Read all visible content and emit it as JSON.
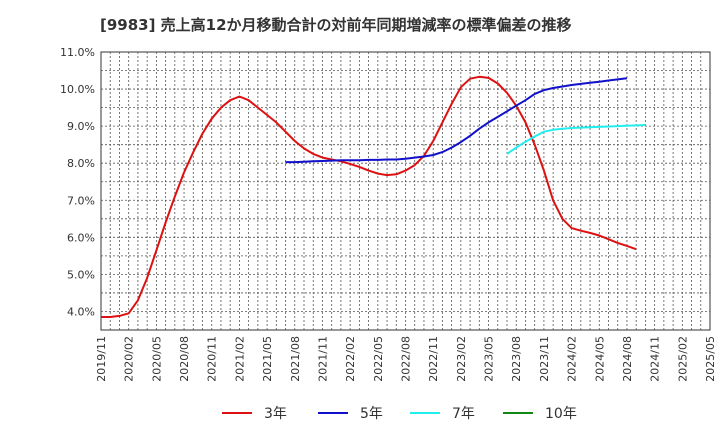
{
  "chart_data": {
    "type": "line",
    "title": "[9983]  売上高12か月移動合計の対前年同期増減率の標準偏差の推移",
    "xlabel": "",
    "ylabel": "",
    "ylim": [
      3.5,
      11.0
    ],
    "yticks": [
      "4.0%",
      "5.0%",
      "6.0%",
      "7.0%",
      "8.0%",
      "9.0%",
      "10.0%",
      "11.0%"
    ],
    "x_labels": [
      "2019/11",
      "2020/02",
      "2020/05",
      "2020/08",
      "2020/11",
      "2021/02",
      "2021/05",
      "2021/08",
      "2021/11",
      "2022/02",
      "2022/05",
      "2022/08",
      "2022/11",
      "2023/02",
      "2023/05",
      "2023/08",
      "2023/11",
      "2024/02",
      "2024/05",
      "2024/08",
      "2024/11",
      "2025/02",
      "2025/05"
    ],
    "grid": true,
    "legend_position": "bottom",
    "series": [
      {
        "name": "3年",
        "color": "#dd1111",
        "start": "2019/11",
        "values": [
          3.85,
          3.85,
          3.88,
          3.95,
          4.3,
          4.9,
          5.65,
          6.4,
          7.1,
          7.75,
          8.3,
          8.8,
          9.2,
          9.5,
          9.7,
          9.8,
          9.7,
          9.5,
          9.3,
          9.1,
          8.85,
          8.6,
          8.4,
          8.25,
          8.15,
          8.1,
          8.05,
          7.98,
          7.9,
          7.8,
          7.72,
          7.68,
          7.7,
          7.8,
          7.95,
          8.2,
          8.6,
          9.1,
          9.6,
          10.05,
          10.28,
          10.33,
          10.3,
          10.15,
          9.9,
          9.55,
          9.1,
          8.5,
          7.8,
          7.0,
          6.5,
          6.25,
          6.18,
          6.12,
          6.05,
          5.95,
          5.85,
          5.77,
          5.68
        ]
      },
      {
        "name": "5年",
        "color": "#1111cc",
        "start": "2021/07",
        "values": [
          8.03,
          8.03,
          8.04,
          8.05,
          8.06,
          8.07,
          8.08,
          8.08,
          8.08,
          8.09,
          8.09,
          8.1,
          8.1,
          8.12,
          8.15,
          8.18,
          8.22,
          8.3,
          8.42,
          8.57,
          8.74,
          8.93,
          9.1,
          9.25,
          9.4,
          9.55,
          9.7,
          9.87,
          9.97,
          10.03,
          10.07,
          10.11,
          10.14,
          10.17,
          10.2,
          10.23,
          10.26,
          10.29
        ]
      },
      {
        "name": "7年",
        "color": "#22eeee",
        "start": "2023/07",
        "values": [
          8.25,
          8.42,
          8.58,
          8.72,
          8.85,
          8.9,
          8.93,
          8.95,
          8.96,
          8.97,
          8.98,
          8.99,
          9.0,
          9.01,
          9.02,
          9.03
        ]
      },
      {
        "name": "10年",
        "color": "#118811",
        "start": "2025/05",
        "values": []
      }
    ]
  }
}
